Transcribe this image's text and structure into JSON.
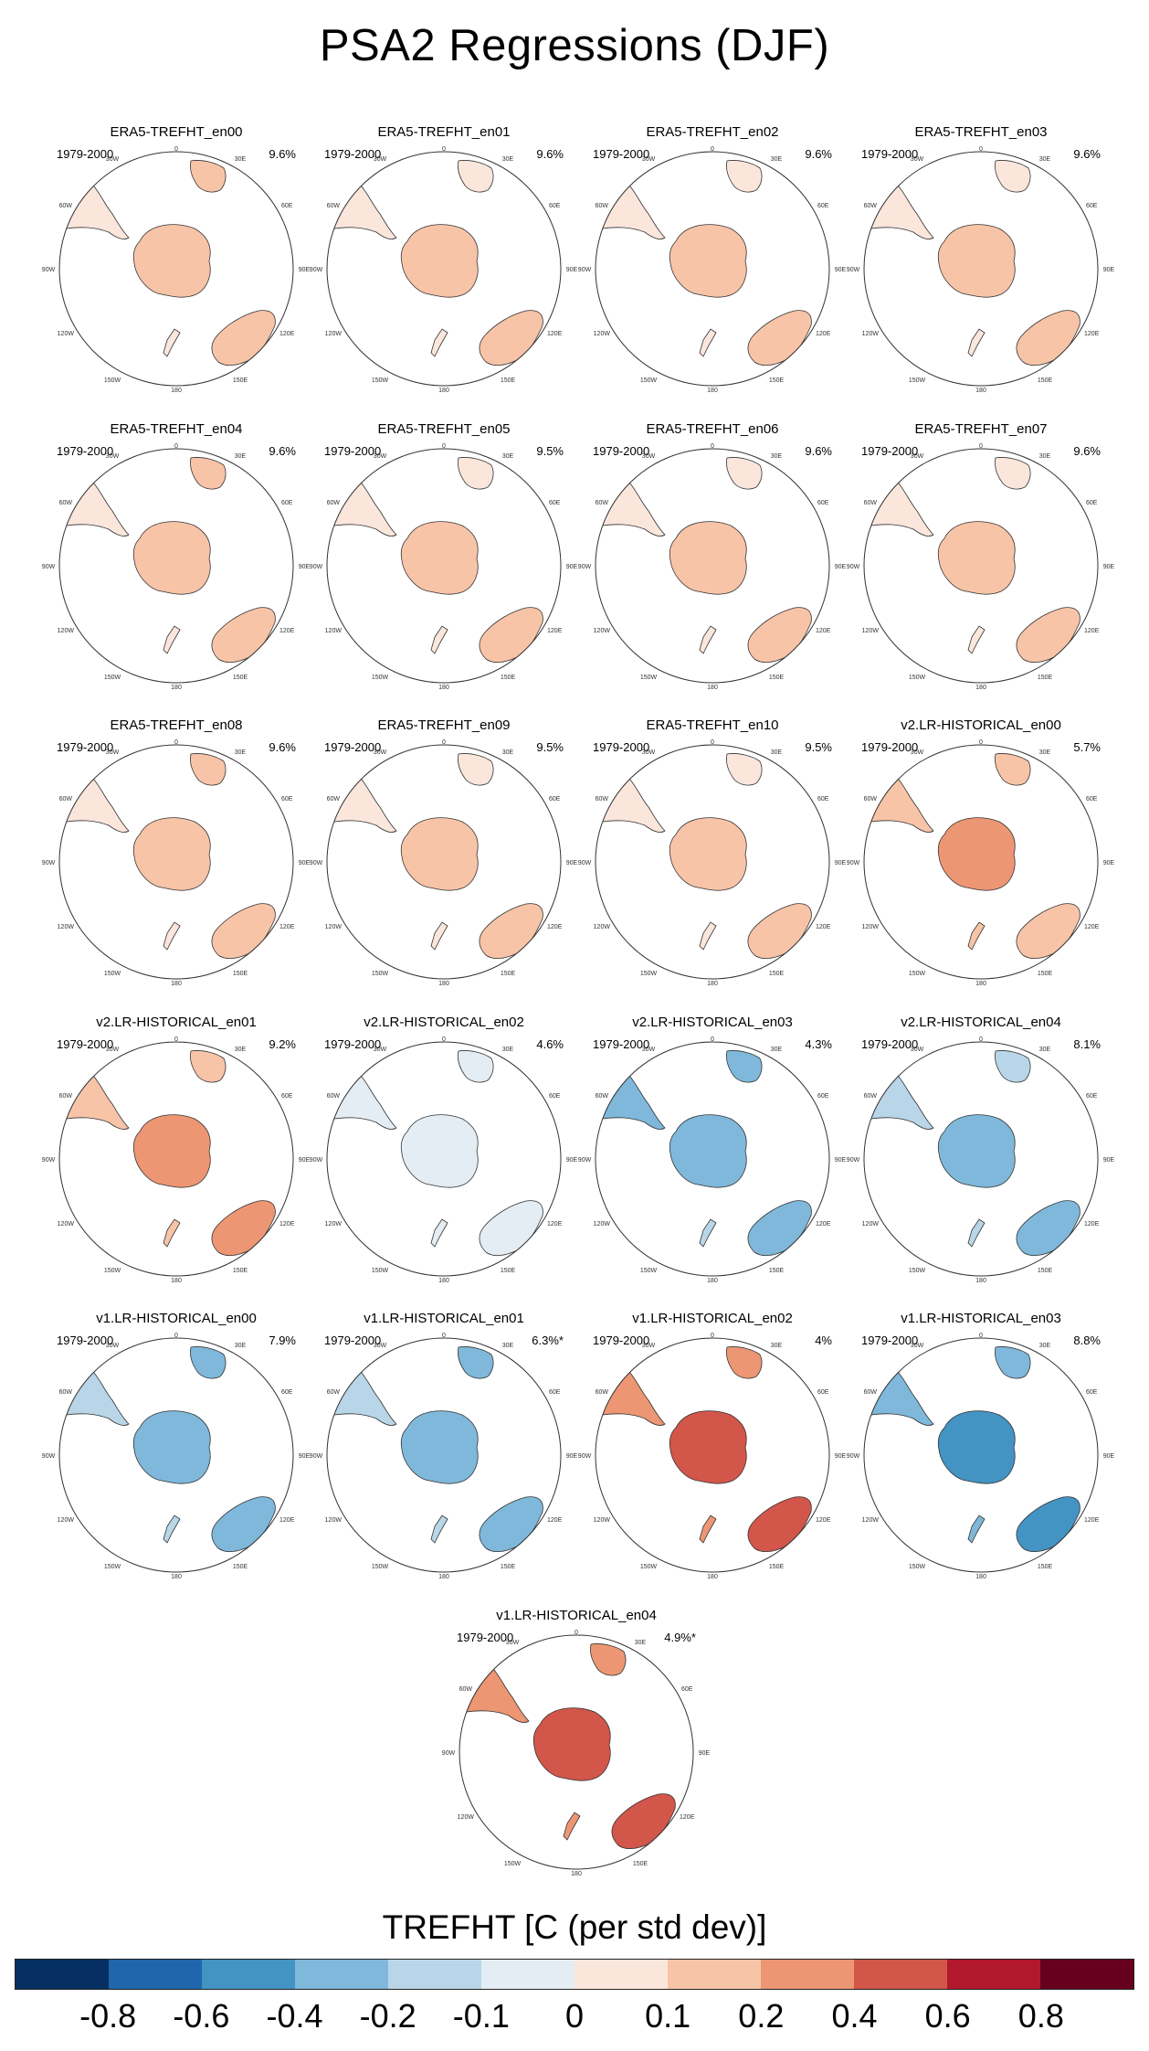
{
  "title": "PSA2 Regressions (DJF)",
  "chart_data": {
    "type": "heatmap",
    "projection": "south polar stereographic",
    "variable": "TREFHT",
    "season": "DJF",
    "period_label": "1979-2000",
    "longitude_labels": [
      "0",
      "30E",
      "60E",
      "90E",
      "120E",
      "150E",
      "180",
      "150W",
      "120W",
      "90W",
      "60W",
      "30W"
    ],
    "panels": [
      {
        "name": "ERA5-TREFHT_en00",
        "pct": "9.6%",
        "dom": 0.15
      },
      {
        "name": "ERA5-TREFHT_en01",
        "pct": "9.6%",
        "dom": 0.12
      },
      {
        "name": "ERA5-TREFHT_en02",
        "pct": "9.6%",
        "dom": 0.14
      },
      {
        "name": "ERA5-TREFHT_en03",
        "pct": "9.6%",
        "dom": 0.13
      },
      {
        "name": "ERA5-TREFHT_en04",
        "pct": "9.6%",
        "dom": 0.15
      },
      {
        "name": "ERA5-TREFHT_en05",
        "pct": "9.5%",
        "dom": 0.12
      },
      {
        "name": "ERA5-TREFHT_en06",
        "pct": "9.6%",
        "dom": 0.14
      },
      {
        "name": "ERA5-TREFHT_en07",
        "pct": "9.6%",
        "dom": 0.13
      },
      {
        "name": "ERA5-TREFHT_en08",
        "pct": "9.6%",
        "dom": 0.15
      },
      {
        "name": "ERA5-TREFHT_en09",
        "pct": "9.5%",
        "dom": 0.12
      },
      {
        "name": "ERA5-TREFHT_en10",
        "pct": "9.5%",
        "dom": 0.14
      },
      {
        "name": "v2.LR-HISTORICAL_en00",
        "pct": "5.7%",
        "dom": 0.2
      },
      {
        "name": "v2.LR-HISTORICAL_en01",
        "pct": "9.2%",
        "dom": 0.25
      },
      {
        "name": "v2.LR-HISTORICAL_en02",
        "pct": "4.6%",
        "dom": -0.1
      },
      {
        "name": "v2.LR-HISTORICAL_en03",
        "pct": "4.3%",
        "dom": -0.4
      },
      {
        "name": "v2.LR-HISTORICAL_en04",
        "pct": "8.1%",
        "dom": -0.25
      },
      {
        "name": "v1.LR-HISTORICAL_en00",
        "pct": "7.9%",
        "dom": -0.3
      },
      {
        "name": "v1.LR-HISTORICAL_en01",
        "pct": "6.3%*",
        "dom": -0.3
      },
      {
        "name": "v1.LR-HISTORICAL_en02",
        "pct": "4%",
        "dom": 0.55
      },
      {
        "name": "v1.LR-HISTORICAL_en03",
        "pct": "8.8%",
        "dom": -0.5
      },
      {
        "name": "v1.LR-HISTORICAL_en04",
        "pct": "4.9%*",
        "dom": 0.45
      }
    ],
    "colorbar": {
      "title": "TREFHT [C (per std dev)]",
      "levels": [
        "-0.8",
        "-0.6",
        "-0.4",
        "-0.2",
        "-0.1",
        "0",
        "0.1",
        "0.2",
        "0.4",
        "0.6",
        "0.8"
      ],
      "colors": [
        "#053061",
        "#2166ac",
        "#4393c3",
        "#7fb8da",
        "#b8d6e8",
        "#e3edf3",
        "#fbe6dc",
        "#f7c4a8",
        "#ec9674",
        "#d2564a",
        "#b2182b",
        "#67001f"
      ]
    }
  }
}
